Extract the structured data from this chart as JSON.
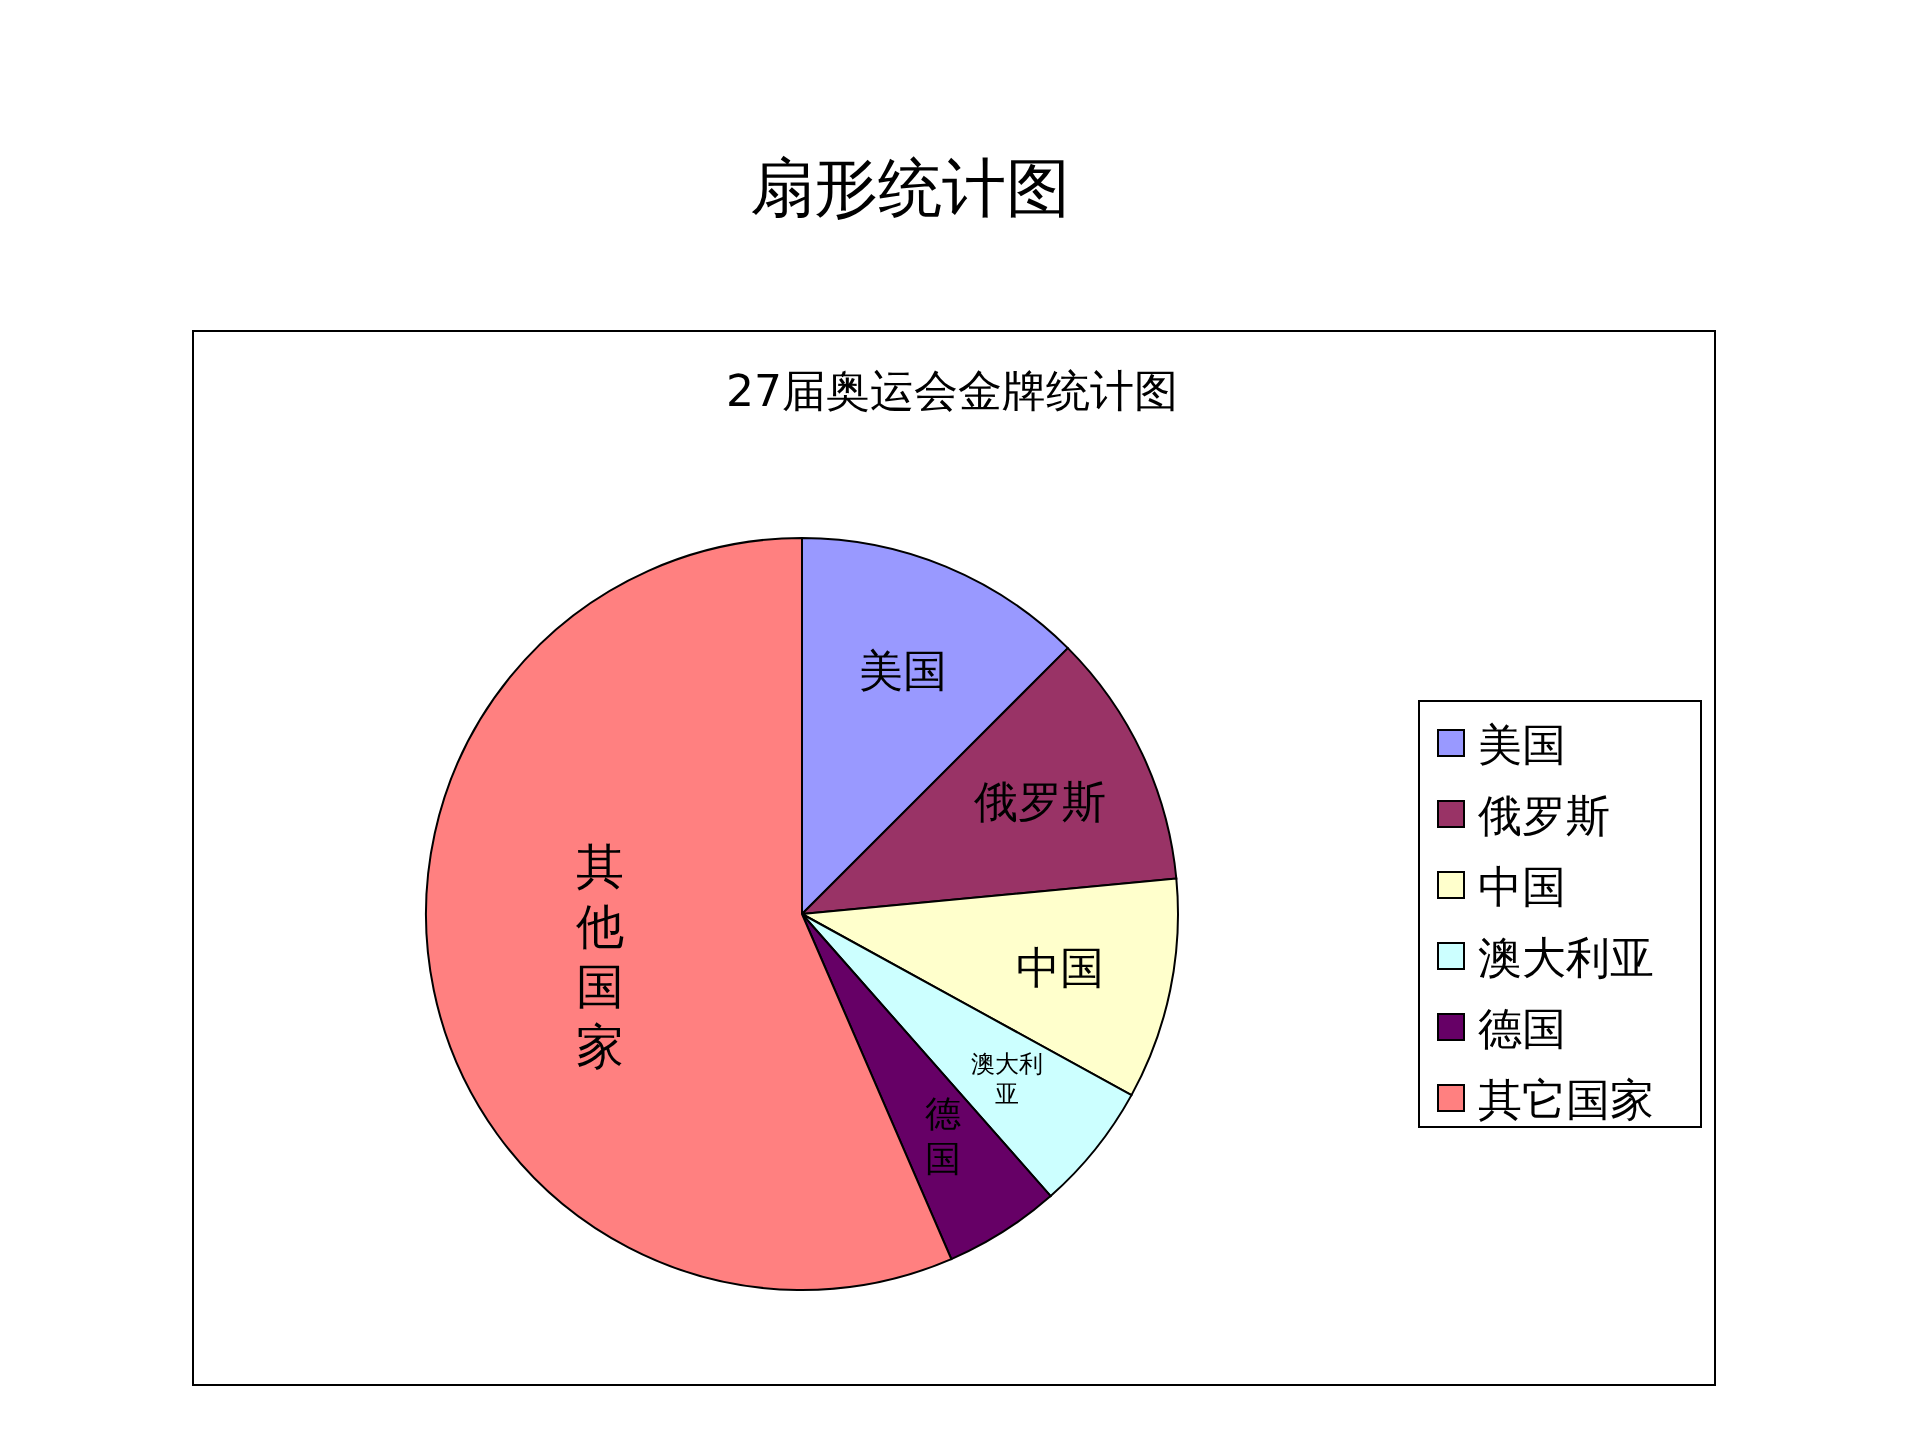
{
  "chart_data": {
    "type": "pie",
    "title": "扇形统计图",
    "subtitle": "27届奥运会金牌统计图",
    "categories": [
      "美国",
      "俄罗斯",
      "中国",
      "澳大利亚",
      "德国",
      "其它国家"
    ],
    "values": [
      12.5,
      11,
      9.5,
      5.5,
      5,
      56.5
    ],
    "colors": [
      "#9999ff",
      "#993366",
      "#ffffcc",
      "#ccffff",
      "#660066",
      "#ff8080"
    ],
    "value_labels": [
      "美国",
      "俄罗斯",
      "中国",
      "澳大利亚",
      "德国",
      "其他国家"
    ],
    "legend": "right"
  }
}
